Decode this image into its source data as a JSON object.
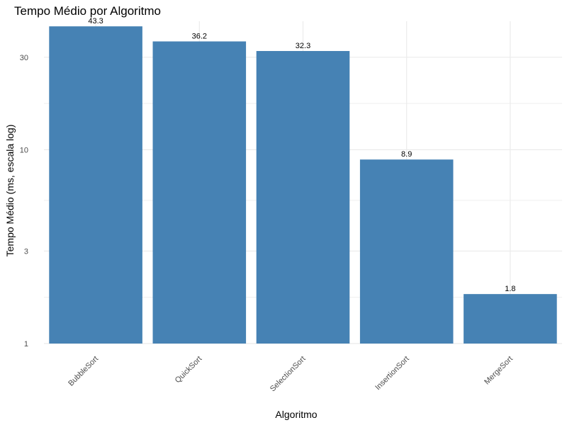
{
  "chart_data": {
    "type": "bar",
    "title": "Tempo Médio por Algoritmo",
    "xlabel": "Algoritmo",
    "ylabel": "Tempo Médio (ms, escala log)",
    "y_scale": "log",
    "ylim": [
      1,
      46
    ],
    "y_ticks": [
      1,
      3,
      10,
      30
    ],
    "y_tick_labels": [
      "1",
      "3",
      "10",
      "30"
    ],
    "grid": true,
    "categories": [
      "BubbleSort",
      "QuickSort",
      "SelectionSort",
      "InsertionSort",
      "MergeSort"
    ],
    "values": [
      43.3,
      36.2,
      32.3,
      8.9,
      1.8
    ],
    "data_labels": [
      "43.3",
      "36.2",
      "32.3",
      "8.9",
      "1.8"
    ],
    "bar_color": "#4682B4",
    "grid_color": "#EBEBEB"
  }
}
